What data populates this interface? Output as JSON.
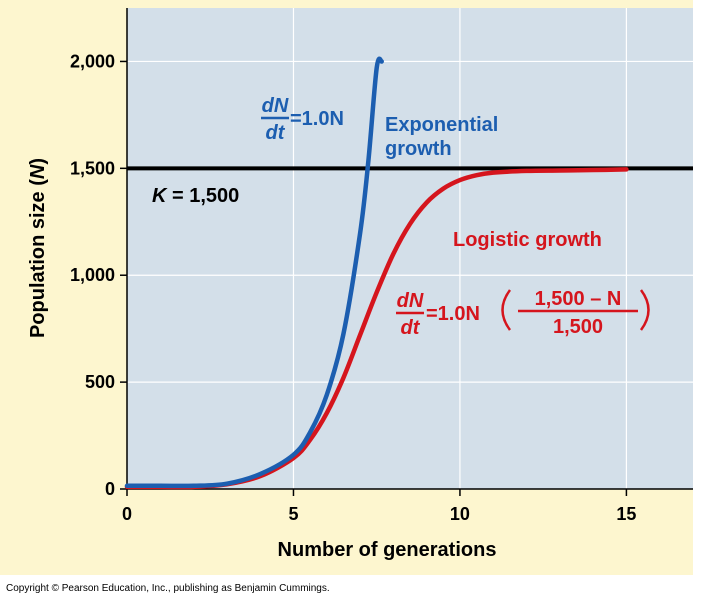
{
  "chart_data": {
    "type": "line",
    "xlabel": "Number of generations",
    "ylabel_main": "Population size (",
    "ylabel_var": "N",
    "ylabel_close": ")",
    "xlim": [
      0,
      17
    ],
    "ylim": [
      0,
      2250
    ],
    "x_ticks": [
      {
        "value": 0,
        "label": "0"
      },
      {
        "value": 5,
        "label": "5"
      },
      {
        "value": 10,
        "label": "10"
      },
      {
        "value": 15,
        "label": "15"
      }
    ],
    "y_ticks": [
      {
        "value": 0,
        "label": "0"
      },
      {
        "value": 500,
        "label": "500"
      },
      {
        "value": 1000,
        "label": "1,000"
      },
      {
        "value": 1500,
        "label": "1,500"
      },
      {
        "value": 2000,
        "label": "2,000"
      }
    ],
    "grid": true,
    "carrying_capacity": {
      "value": 1500,
      "label_var": "K",
      "label_rest": " = 1,500"
    },
    "series": [
      {
        "name": "Exponential growth",
        "name_line1": "Exponential",
        "name_line2": "growth",
        "color": "#1c5eb0",
        "equation": {
          "num": "dN",
          "den": "dt",
          "rhs": "=1.0N"
        },
        "x": [
          0,
          1,
          2,
          3,
          4,
          5,
          5.5,
          6,
          6.5,
          7,
          7.25,
          7.5,
          7.65
        ],
        "y": [
          15,
          15,
          15,
          25,
          70,
          160,
          265,
          440,
          725,
          1195,
          1535,
          1970,
          2000
        ]
      },
      {
        "name": "Logistic growth",
        "color": "#d5151d",
        "equation": {
          "num": "dN",
          "den": "dt",
          "rhs": "=1.0N",
          "frac_num": "1,500 – N",
          "frac_den": "1,500"
        },
        "x": [
          0,
          1,
          2,
          3,
          4,
          5,
          5.5,
          6,
          6.5,
          7,
          7.5,
          8,
          8.5,
          9,
          9.5,
          10,
          10.5,
          11,
          12,
          13,
          14,
          15
        ],
        "y": [
          10,
          10,
          10,
          22,
          60,
          145,
          230,
          355,
          520,
          720,
          920,
          1100,
          1240,
          1340,
          1405,
          1445,
          1468,
          1480,
          1488,
          1490,
          1492,
          1495
        ]
      }
    ],
    "copyright": "Copyright © Pearson Education, Inc., publishing as Benjamin Cummings."
  }
}
